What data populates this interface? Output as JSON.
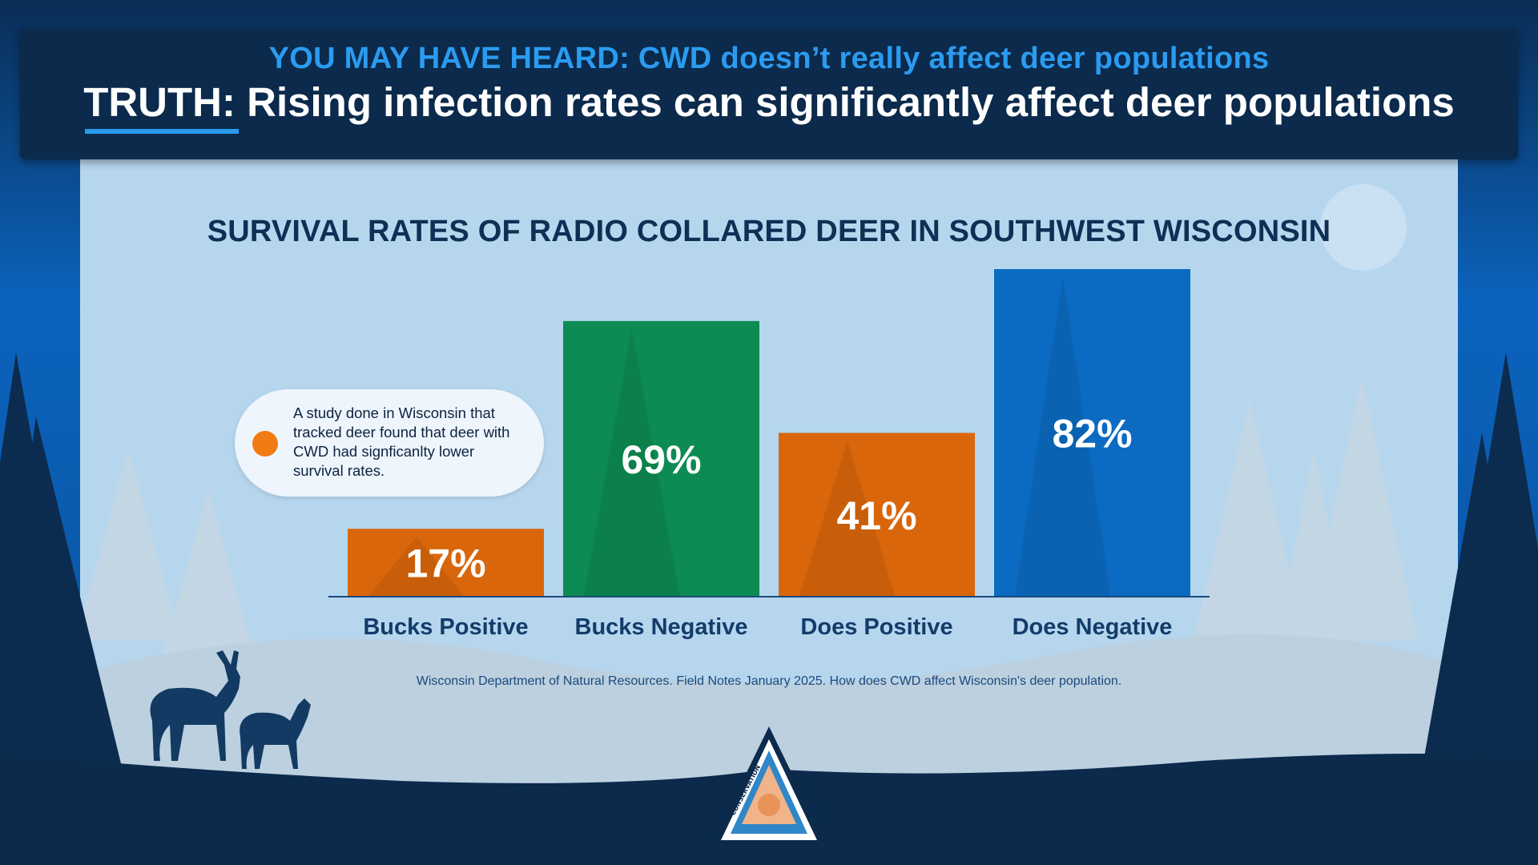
{
  "header": {
    "myth": "YOU MAY HAVE HEARD: CWD doesn’t really affect deer populations",
    "truth_label": "TRUTH:",
    "truth_text": " Rising infection rates can significantly affect deer populations"
  },
  "callout": {
    "text": "A study done in Wisconsin that tracked deer found that deer with CWD had signficanlty lower survival rates."
  },
  "source": "Wisconsin Department of Natural Resources. Field Notes January 2025. How does CWD affect Wisconsin's deer population.",
  "logo": {
    "top_text": "CONSERVATION",
    "right_text": "DEPARTMENT",
    "bottom_text": "MISSOURI"
  },
  "colors": {
    "orange": "#d9660a",
    "green": "#0c8b52",
    "blue": "#0b6bc2",
    "axis_label": "#123c6a",
    "header_bg": "#0b2a4c",
    "accent_blue": "#2b9bf0"
  },
  "chart_data": {
    "type": "bar",
    "title": "SURVIVAL RATES OF RADIO COLLARED DEER IN SOUTHWEST WISCONSIN",
    "categories": [
      "Bucks Positive",
      "Bucks Negative",
      "Does Positive",
      "Does Negative"
    ],
    "values": [
      17,
      69,
      41,
      82
    ],
    "value_labels": [
      "17%",
      "69%",
      "41%",
      "82%"
    ],
    "bar_colors": [
      "#d9660a",
      "#0c8b52",
      "#d9660a",
      "#0b6bc2"
    ],
    "ylim": [
      0,
      82
    ],
    "grid": false,
    "legend": "none",
    "xlabel": "",
    "ylabel": ""
  }
}
